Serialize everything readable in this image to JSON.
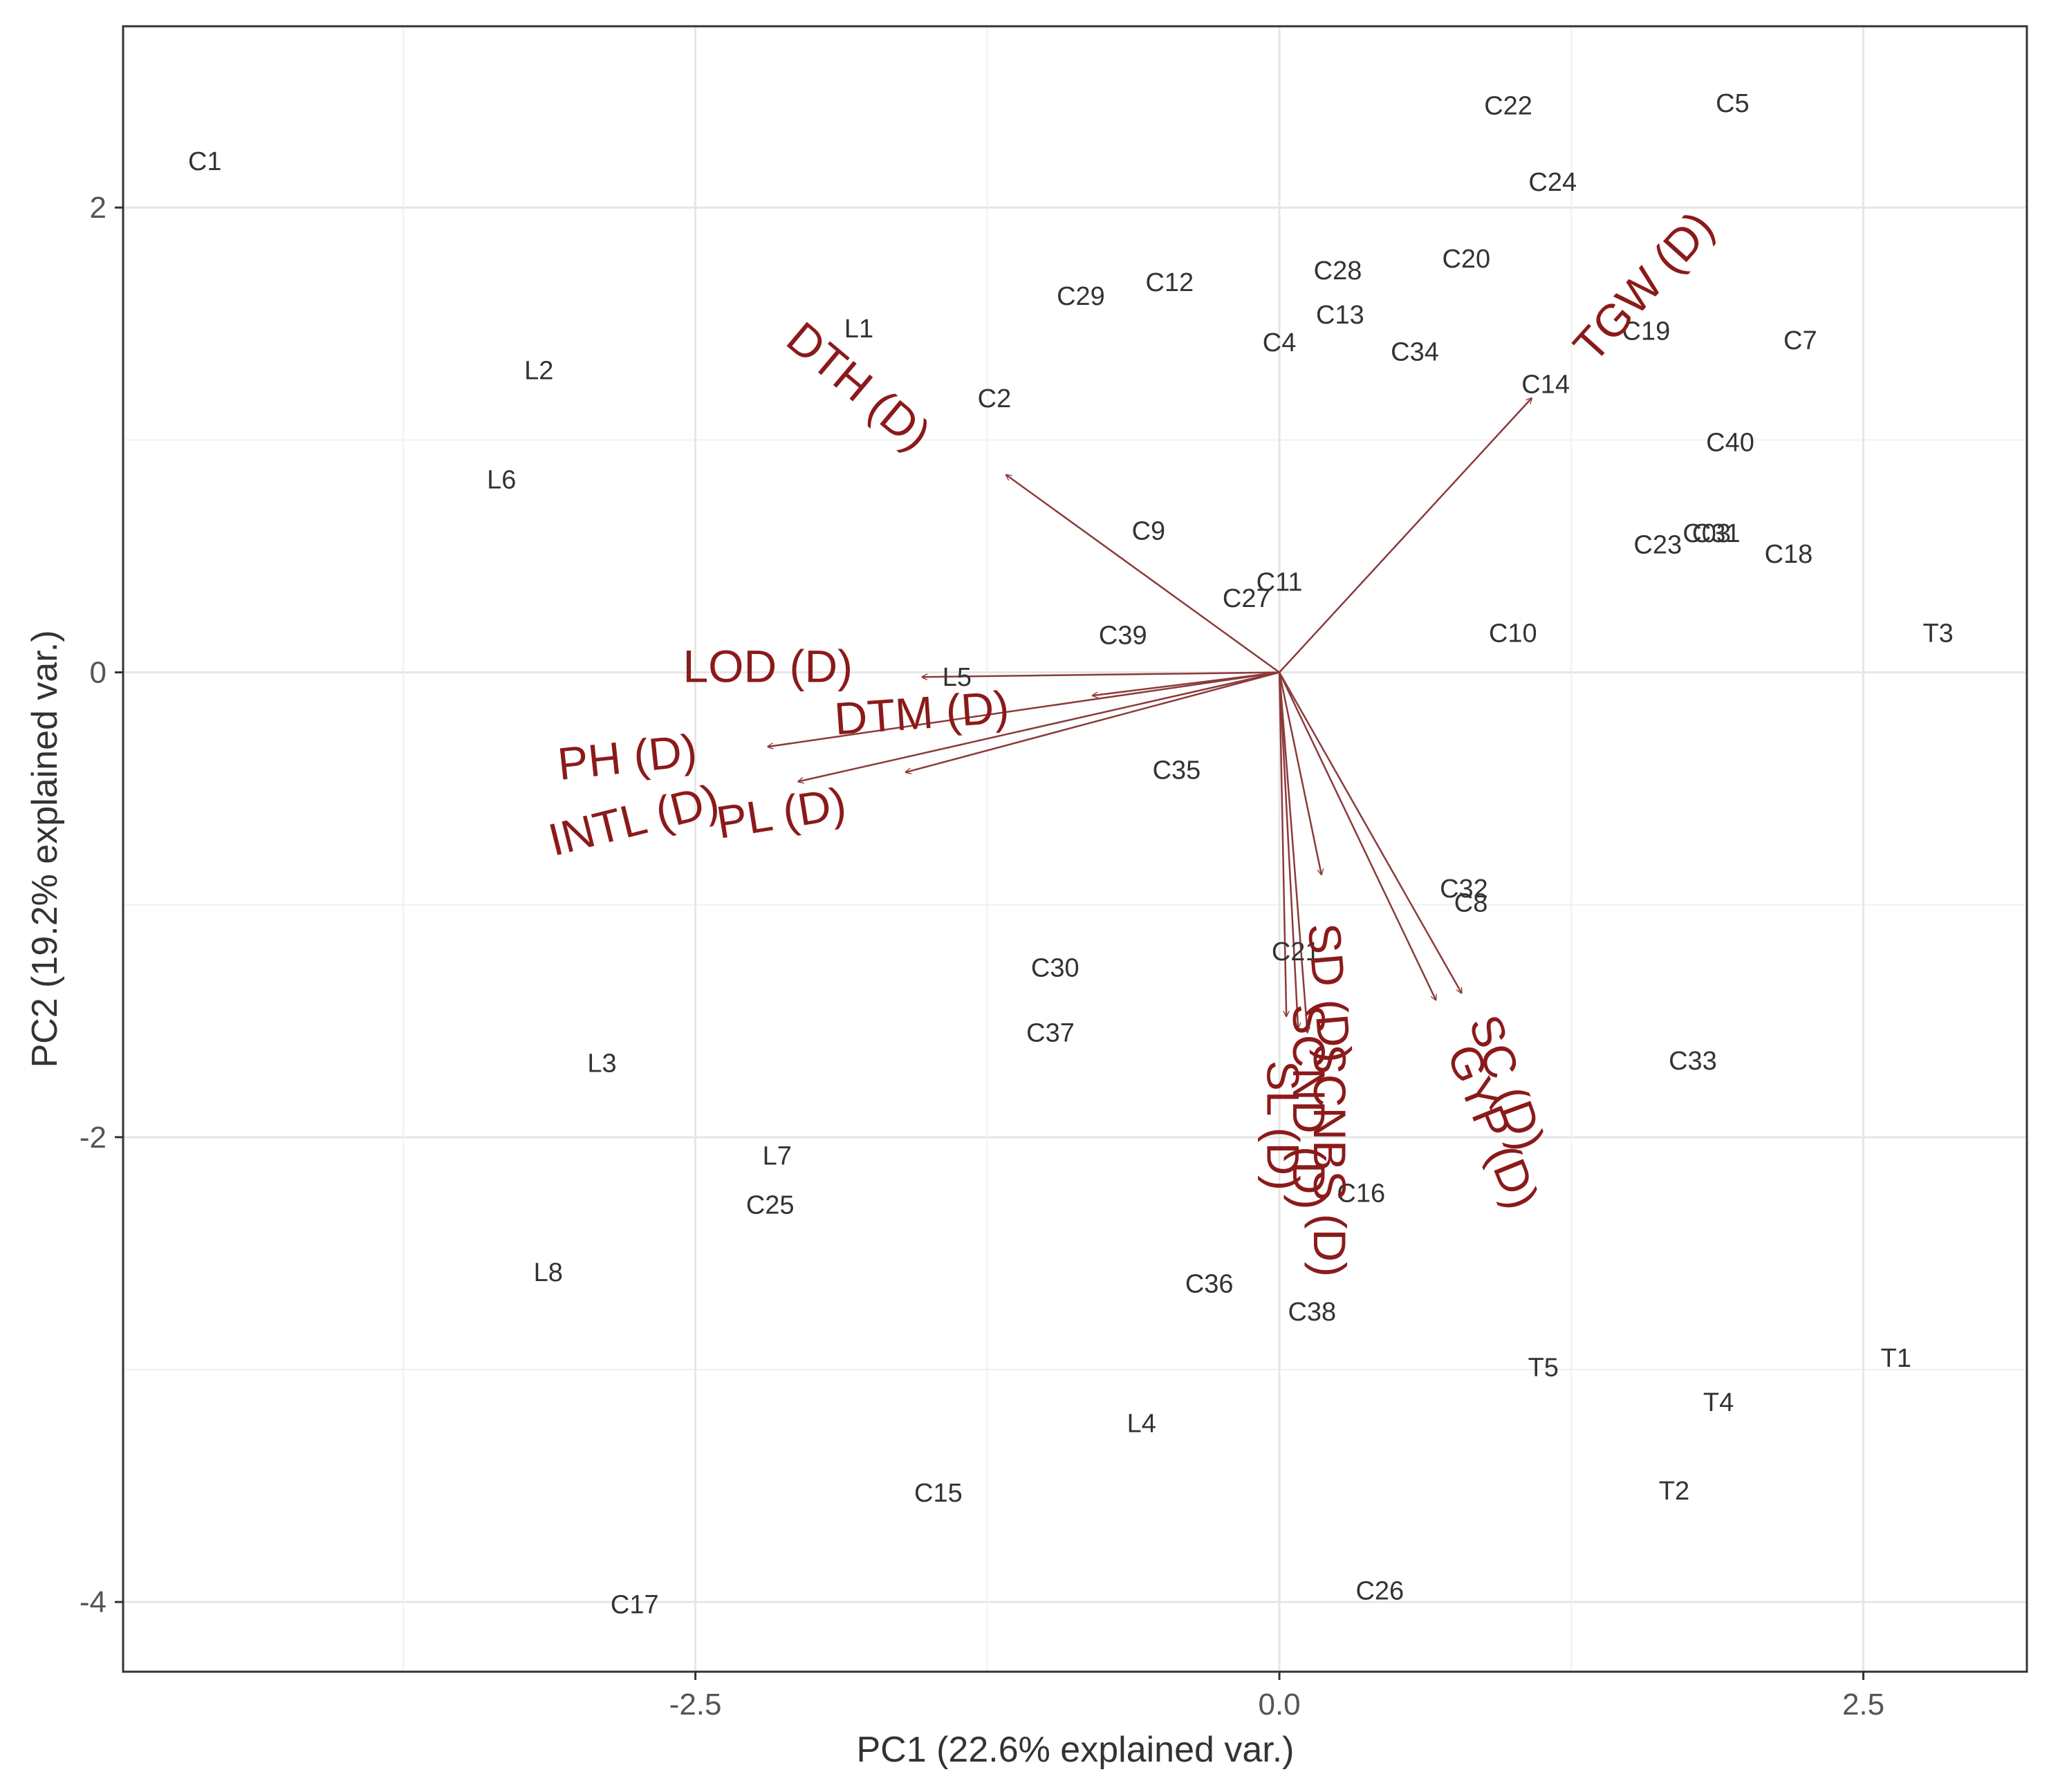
{
  "chart_data": {
    "type": "scatter",
    "subtype": "pca-biplot",
    "title": "",
    "xlabel": "PC1 (22.6% explained var.)",
    "ylabel": "PC2 (19.2% explained var.)",
    "xlim": [
      -4.95,
      3.2
    ],
    "ylim": [
      -4.3,
      2.78
    ],
    "xticks": [
      -2.5,
      0.0,
      2.5
    ],
    "xtick_labels": [
      "-2.5",
      "0.0",
      "2.5"
    ],
    "yticks": [
      -4,
      -2,
      0,
      2
    ],
    "ytick_labels": [
      "-4",
      "-2",
      "0",
      "2"
    ],
    "grid": true,
    "arrow_color": "#8b3a3a",
    "label_color": "#8b1a1a",
    "points": [
      {
        "label": "C1",
        "x": -4.6,
        "y": 2.2
      },
      {
        "label": "L2",
        "x": -3.17,
        "y": 1.3
      },
      {
        "label": "L6",
        "x": -3.33,
        "y": 0.83
      },
      {
        "label": "L1",
        "x": -1.8,
        "y": 1.48
      },
      {
        "label": "C2",
        "x": -1.22,
        "y": 1.18
      },
      {
        "label": "C29",
        "x": -0.85,
        "y": 1.62
      },
      {
        "label": "C12",
        "x": -0.47,
        "y": 1.68
      },
      {
        "label": "C4",
        "x": 0.0,
        "y": 1.42
      },
      {
        "label": "C28",
        "x": 0.25,
        "y": 1.73
      },
      {
        "label": "C13",
        "x": 0.26,
        "y": 1.54
      },
      {
        "label": "C34",
        "x": 0.58,
        "y": 1.38
      },
      {
        "label": "C20",
        "x": 0.8,
        "y": 1.78
      },
      {
        "label": "C22",
        "x": 0.98,
        "y": 2.44
      },
      {
        "label": "C24",
        "x": 1.17,
        "y": 2.11
      },
      {
        "label": "C5",
        "x": 1.94,
        "y": 2.45
      },
      {
        "label": "C19",
        "x": 1.57,
        "y": 1.47
      },
      {
        "label": "C7",
        "x": 2.23,
        "y": 1.43
      },
      {
        "label": "C14",
        "x": 1.14,
        "y": 1.24
      },
      {
        "label": "C40",
        "x": 1.93,
        "y": 0.99
      },
      {
        "label": "C9",
        "x": -0.56,
        "y": 0.61
      },
      {
        "label": "C23",
        "x": 1.62,
        "y": 0.55
      },
      {
        "label": "C03",
        "x": 1.83,
        "y": 0.6
      },
      {
        "label": "C31",
        "x": 1.87,
        "y": 0.6
      },
      {
        "label": "C18",
        "x": 2.18,
        "y": 0.51
      },
      {
        "label": "C11",
        "x": 0.0,
        "y": 0.39
      },
      {
        "label": "C27",
        "x": -0.14,
        "y": 0.32
      },
      {
        "label": "C39",
        "x": -0.67,
        "y": 0.16
      },
      {
        "label": "C10",
        "x": 1.0,
        "y": 0.17
      },
      {
        "label": "T3",
        "x": 2.82,
        "y": 0.17
      },
      {
        "label": "L5",
        "x": -1.38,
        "y": -0.02
      },
      {
        "label": "C35",
        "x": -0.44,
        "y": -0.42
      },
      {
        "label": "C32",
        "x": 0.79,
        "y": -0.93
      },
      {
        "label": "C8",
        "x": 0.82,
        "y": -0.99
      },
      {
        "label": "C21",
        "x": 0.07,
        "y": -1.2
      },
      {
        "label": "C30",
        "x": -0.96,
        "y": -1.27
      },
      {
        "label": "C37",
        "x": -0.98,
        "y": -1.55
      },
      {
        "label": "C33",
        "x": 1.77,
        "y": -1.67
      },
      {
        "label": "L3",
        "x": -2.9,
        "y": -1.68
      },
      {
        "label": "L7",
        "x": -2.15,
        "y": -2.08
      },
      {
        "label": "C25",
        "x": -2.18,
        "y": -2.29
      },
      {
        "label": "C16",
        "x": 0.35,
        "y": -2.24
      },
      {
        "label": "L8",
        "x": -3.13,
        "y": -2.58
      },
      {
        "label": "C36",
        "x": -0.3,
        "y": -2.63
      },
      {
        "label": "C38",
        "x": 0.14,
        "y": -2.75
      },
      {
        "label": "T5",
        "x": 1.13,
        "y": -2.99
      },
      {
        "label": "L4",
        "x": -0.59,
        "y": -3.23
      },
      {
        "label": "C15",
        "x": -1.46,
        "y": -3.53
      },
      {
        "label": "C17",
        "x": -2.76,
        "y": -4.01
      },
      {
        "label": "T1",
        "x": 2.64,
        "y": -2.95
      },
      {
        "label": "T4",
        "x": 1.88,
        "y": -3.14
      },
      {
        "label": "T2",
        "x": 1.69,
        "y": -3.52
      },
      {
        "label": "C26",
        "x": 0.43,
        "y": -3.95
      }
    ],
    "loadings": [
      {
        "label": "DTH (D)",
        "x": -1.17,
        "y": 0.85,
        "lx": -1.81,
        "ly": 1.22,
        "rot": 40
      },
      {
        "label": "TGW (D)",
        "x": 1.08,
        "y": 1.18,
        "lx": 1.57,
        "ly": 1.65,
        "rot": -48
      },
      {
        "label": "LOD (D)",
        "x": -1.53,
        "y": -0.02,
        "lx": -2.19,
        "ly": 0.01,
        "rot": 0
      },
      {
        "label": "DTM (D)",
        "x": -0.8,
        "y": -0.1,
        "lx": -1.53,
        "ly": -0.19,
        "rot": -4
      },
      {
        "label": "PH (D)",
        "x": -2.19,
        "y": -0.32,
        "lx": -2.79,
        "ly": -0.38,
        "rot": -6
      },
      {
        "label": "PL (D)",
        "x": -2.06,
        "y": -0.47,
        "lx": -2.13,
        "ly": -0.62,
        "rot": -9
      },
      {
        "label": "INTL (D)",
        "x": -1.6,
        "y": -0.43,
        "lx": -2.76,
        "ly": -0.65,
        "rot": -14
      },
      {
        "label": "SD (D)",
        "x": 0.18,
        "y": -0.87,
        "lx": 0.2,
        "ly": -1.38,
        "rot": 85
      },
      {
        "label": "SL (D)",
        "x": 0.03,
        "y": -1.48,
        "lx": 0.0,
        "ly": -1.95,
        "rot": 90
      },
      {
        "label": "SCND (D)",
        "x": 0.08,
        "y": -1.53,
        "lx": 0.11,
        "ly": -1.87,
        "rot": 90
      },
      {
        "label": "SCNBS (D)",
        "x": 0.12,
        "y": -1.55,
        "lx": 0.2,
        "ly": -2.1,
        "rot": 90
      },
      {
        "label": "SC (D)",
        "x": 0.78,
        "y": -1.38,
        "lx": 0.96,
        "ly": -1.77,
        "rot": 70
      },
      {
        "label": "GYP (D)",
        "x": 0.67,
        "y": -1.41,
        "lx": 0.9,
        "ly": -1.96,
        "rot": 68
      }
    ]
  }
}
